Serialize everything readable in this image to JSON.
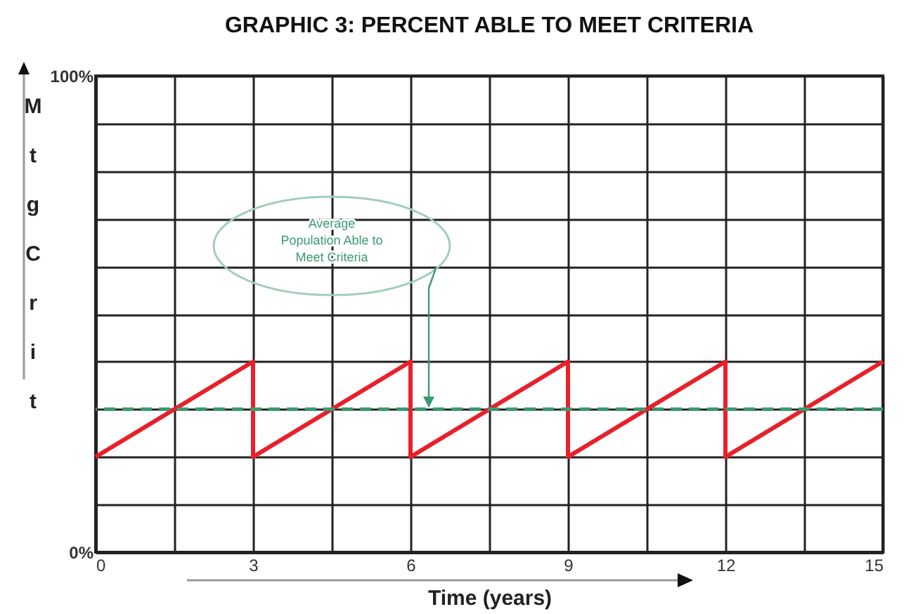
{
  "chart_data": {
    "type": "line",
    "title": "GRAPHIC 3: PERCENT ABLE TO MEET CRITERIA",
    "xlabel": "Time (years)",
    "ylabel": "Mtg Crit",
    "x": [
      0,
      3,
      3,
      6,
      6,
      9,
      9,
      12,
      12,
      15
    ],
    "series": [
      {
        "color": "#e8202a",
        "values": [
          20,
          40,
          20,
          40,
          20,
          40,
          20,
          40,
          20,
          40
        ]
      }
    ],
    "xlim": [
      0,
      15
    ],
    "xticks": [
      0,
      {
        "value": 1.5,
        "label": null
      },
      3,
      {
        "value": 4.5,
        "label": null
      },
      6,
      {
        "value": 7.5,
        "label": null
      },
      9,
      {
        "value": 10.5,
        "label": null
      },
      12,
      {
        "value": 13.5,
        "label": null
      },
      15
    ],
    "ylim": [
      0,
      100
    ],
    "yticks": [
      {
        "value": 0,
        "label": "0%"
      },
      {
        "value": 10,
        "label": null
      },
      {
        "value": 20,
        "label": null
      },
      {
        "value": 30,
        "label": null
      },
      {
        "value": 40,
        "label": null
      },
      {
        "value": 50,
        "label": null
      },
      {
        "value": 60,
        "label": null
      },
      {
        "value": 70,
        "label": null
      },
      {
        "value": 80,
        "label": null
      },
      {
        "value": 90,
        "label": null
      },
      {
        "value": 100,
        "label": "100%"
      }
    ],
    "grid": true,
    "line_style": "solid",
    "marker": "none",
    "ref_lines": [
      {
        "axis": "y",
        "value": 30,
        "color": "#3a9a70",
        "line_style": "dashed"
      }
    ],
    "annotations": [
      "Average Population Able to Meet Criteria"
    ]
  }
}
